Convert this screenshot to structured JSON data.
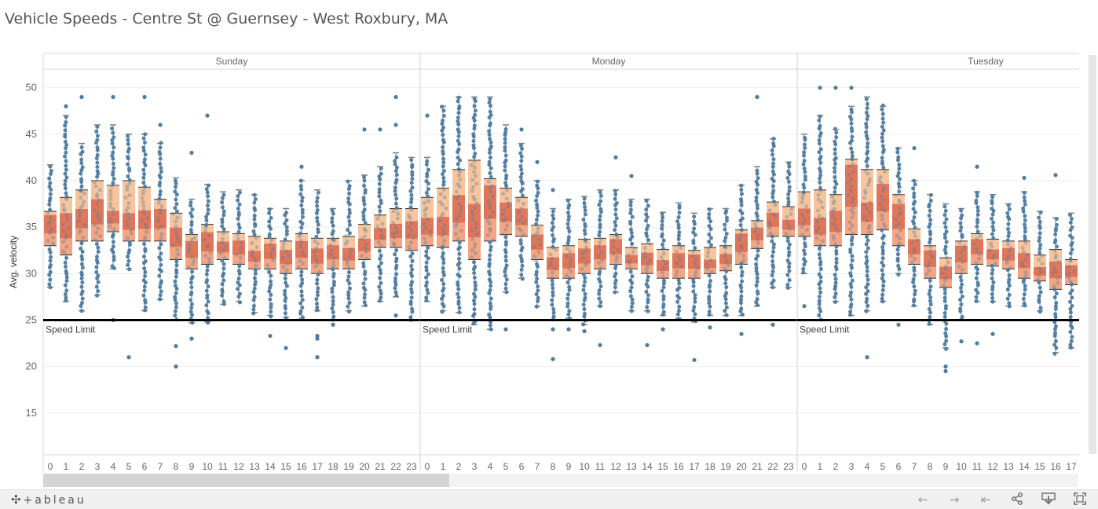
{
  "title": "Vehicle Speeds - Centre St @ Guernsey - West Roxbury, MA",
  "chart_data": {
    "type": "boxplot",
    "y_label": "Avg. velocity",
    "ylim": [
      10.5,
      52
    ],
    "y_ticks": [
      15,
      20,
      25,
      30,
      35,
      40,
      45,
      50
    ],
    "grid": true,
    "reference_line": {
      "value": 25,
      "label": "Speed Limit"
    },
    "panels": [
      {
        "name": "Sunday",
        "hours": [
          "0",
          "1",
          "2",
          "3",
          "4",
          "5",
          "6",
          "7",
          "8",
          "9",
          "10",
          "11",
          "12",
          "13",
          "14",
          "15",
          "16",
          "17",
          "18",
          "19",
          "20",
          "21",
          "22",
          "23"
        ],
        "q1": [
          33.0,
          32.0,
          33.5,
          33.5,
          34.5,
          33.5,
          33.5,
          33.5,
          31.5,
          30.5,
          31.0,
          31.5,
          31.0,
          30.5,
          30.5,
          30.0,
          30.5,
          30.0,
          30.5,
          30.5,
          31.5,
          32.8,
          32.8,
          32.5
        ],
        "median": [
          35.2,
          35.0,
          35.8,
          36.5,
          36.0,
          35.5,
          35.7,
          35.8,
          33.8,
          32.5,
          33.3,
          32.8,
          32.7,
          31.8,
          32.3,
          31.7,
          32.5,
          31.8,
          32.2,
          32.0,
          33.0,
          34.2,
          34.5,
          34.6
        ],
        "q3": [
          36.7,
          38.2,
          39.0,
          40.0,
          39.5,
          40.0,
          39.3,
          38.0,
          36.5,
          34.2,
          35.3,
          34.5,
          34.3,
          34.0,
          33.8,
          33.5,
          34.3,
          33.8,
          33.8,
          34.0,
          35.3,
          36.3,
          37.0,
          37.0
        ],
        "whisker_low": [
          28.5,
          27.0,
          26.0,
          27.7,
          30.5,
          30.5,
          26.0,
          27.2,
          25.0,
          24.7,
          24.8,
          26.7,
          27.0,
          25.8,
          25.5,
          25.3,
          25.2,
          26.0,
          25.0,
          26.0,
          26.5,
          27.0,
          27.5,
          25.0
        ],
        "whisker_high": [
          41.7,
          47.0,
          44.0,
          46.0,
          46.0,
          45.0,
          45.0,
          44.0,
          40.3,
          38.0,
          39.6,
          38.8,
          39.0,
          38.5,
          37.0,
          37.0,
          40.0,
          39.0,
          37.0,
          40.0,
          40.6,
          41.5,
          43.0,
          42.5
        ],
        "outliers_low": [
          [],
          [],
          [],
          [],
          [
            25.0
          ],
          [
            21.0
          ],
          [],
          [],
          [
            22.2,
            20.0
          ],
          [
            23.0
          ],
          [],
          [],
          [],
          [],
          [
            23.3
          ],
          [
            22.0
          ],
          [],
          [
            23.3,
            23.0,
            21.0
          ],
          [
            24.5
          ],
          [],
          [],
          [],
          [
            25.5
          ],
          []
        ],
        "outliers_high": [
          [],
          [
            48.0
          ],
          [
            49.0
          ],
          [],
          [
            49.0
          ],
          [],
          [
            49.0
          ],
          [
            46.0
          ],
          [],
          [
            43.0
          ],
          [
            47.0
          ],
          [],
          [],
          [],
          [],
          [],
          [
            41.5
          ],
          [],
          [],
          [],
          [
            45.5
          ],
          [
            45.5
          ],
          [
            49.0,
            46.0
          ],
          []
        ]
      },
      {
        "name": "Monday",
        "hours": [
          "0",
          "1",
          "2",
          "3",
          "4",
          "5",
          "6",
          "7",
          "8",
          "9",
          "10",
          "11",
          "12",
          "13",
          "14",
          "15",
          "16",
          "17",
          "18",
          "19",
          "20",
          "21",
          "22",
          "23"
        ],
        "q1": [
          33.0,
          32.8,
          33.5,
          31.5,
          33.5,
          34.2,
          34.0,
          31.5,
          29.5,
          29.5,
          30.0,
          30.5,
          31.0,
          30.5,
          30.0,
          29.5,
          29.5,
          29.5,
          30.0,
          30.3,
          31.0,
          32.7,
          34.0,
          34.0
        ],
        "median": [
          35.0,
          35.0,
          36.8,
          35.5,
          37.5,
          36.5,
          36.0,
          33.3,
          31.0,
          31.3,
          31.8,
          32.2,
          32.8,
          31.5,
          31.5,
          30.8,
          31.3,
          31.2,
          31.0,
          31.5,
          33.2,
          34.2,
          35.7,
          35.2
        ],
        "q3": [
          38.2,
          39.2,
          41.2,
          42.2,
          40.2,
          39.2,
          38.2,
          35.2,
          32.8,
          33.0,
          33.7,
          33.8,
          34.2,
          32.8,
          33.2,
          32.6,
          33.0,
          32.5,
          32.8,
          33.0,
          34.7,
          35.7,
          37.7,
          37.2
        ],
        "whisker_low": [
          27.0,
          26.0,
          25.8,
          24.5,
          24.0,
          28.0,
          29.5,
          26.5,
          25.0,
          25.2,
          24.5,
          26.5,
          28.0,
          26.0,
          26.0,
          25.5,
          25.2,
          24.8,
          25.5,
          25.5,
          25.5,
          26.5,
          28.5,
          28.5
        ],
        "whisker_high": [
          42.5,
          48.0,
          49.0,
          49.0,
          49.0,
          46.0,
          44.0,
          40.0,
          37.0,
          38.0,
          38.3,
          39.0,
          39.0,
          38.0,
          38.0,
          36.6,
          37.6,
          36.5,
          37.0,
          37.0,
          39.5,
          41.5,
          44.5,
          42.0
        ],
        "outliers_low": [
          [],
          [],
          [],
          [],
          [],
          [
            24.0
          ],
          [],
          [],
          [
            24.0,
            20.8
          ],
          [
            24.0
          ],
          [
            23.8
          ],
          [
            22.3
          ],
          [],
          [],
          [
            22.3
          ],
          [
            24.0
          ],
          [],
          [
            20.7
          ],
          [
            24.2
          ],
          [],
          [
            23.5
          ],
          [],
          [
            24.5
          ],
          []
        ],
        "outliers_high": [
          [
            47.0
          ],
          [],
          [],
          [],
          [],
          [],
          [
            45.5
          ],
          [
            42.0
          ],
          [
            39.0
          ],
          [],
          [],
          [],
          [
            42.5
          ],
          [
            40.5
          ],
          [],
          [],
          [],
          [],
          [],
          [],
          [],
          [
            49.0
          ],
          [],
          []
        ]
      },
      {
        "name": "Tuesday",
        "hours": [
          "0",
          "1",
          "2",
          "3",
          "4",
          "5",
          "6",
          "7",
          "8",
          "9",
          "10",
          "11",
          "12",
          "13",
          "14",
          "15",
          "16",
          "17"
        ],
        "q1": [
          34.0,
          33.0,
          33.0,
          34.2,
          34.2,
          34.7,
          33.0,
          31.0,
          29.5,
          28.5,
          30.0,
          31.0,
          30.8,
          30.5,
          29.5,
          29.2,
          28.3,
          28.8
        ],
        "median": [
          36.0,
          35.0,
          35.5,
          39.2,
          36.5,
          38.0,
          36.0,
          32.8,
          31.5,
          30.0,
          32.0,
          32.8,
          32.0,
          32.0,
          31.3,
          30.2,
          30.3,
          30.2
        ],
        "q3": [
          38.8,
          39.0,
          38.5,
          42.3,
          41.2,
          41.2,
          38.5,
          34.8,
          33.0,
          31.7,
          33.5,
          34.3,
          33.7,
          33.5,
          33.5,
          32.0,
          32.6,
          31.5
        ],
        "whisker_low": [
          30.0,
          25.0,
          27.0,
          25.5,
          26.0,
          27.0,
          30.0,
          26.5,
          24.5,
          22.0,
          25.0,
          27.0,
          27.0,
          26.5,
          26.5,
          26.0,
          21.5,
          22.0
        ],
        "whisker_high": [
          45.0,
          47.0,
          45.5,
          48.0,
          49.0,
          48.0,
          43.5,
          40.0,
          38.5,
          37.5,
          37.0,
          38.8,
          38.5,
          37.5,
          38.8,
          36.7,
          36.0,
          36.5
        ],
        "outliers_low": [
          [
            26.5
          ],
          [],
          [],
          [],
          [
            21.0
          ],
          [],
          [
            24.5
          ],
          [],
          [],
          [
            20.0,
            19.5
          ],
          [
            22.7
          ],
          [
            22.5
          ],
          [
            23.5
          ],
          [],
          [],
          [],
          [],
          []
        ],
        "outliers_high": [
          [],
          [
            50.0
          ],
          [
            50.0
          ],
          [
            50.0
          ],
          [],
          [],
          [],
          [
            43.5
          ],
          [],
          [],
          [],
          [
            41.5
          ],
          [],
          [],
          [
            40.3
          ],
          [],
          [
            40.6
          ],
          []
        ]
      }
    ]
  },
  "colors": {
    "dot": "#4e7ba0",
    "box_upper": "#f8c49c",
    "box_lower": "#f4a582",
    "median_band": "#dd6a4f",
    "whisker": "#808080",
    "reference_line": "#000000",
    "gridline": "#eeeeee",
    "text": "#666666"
  },
  "footer": {
    "logo_text": "+ableau",
    "logo_mark": "✣",
    "icons": [
      "undo-icon",
      "redo-icon",
      "revert-icon",
      "share-icon",
      "download-icon",
      "fullscreen-icon"
    ]
  }
}
